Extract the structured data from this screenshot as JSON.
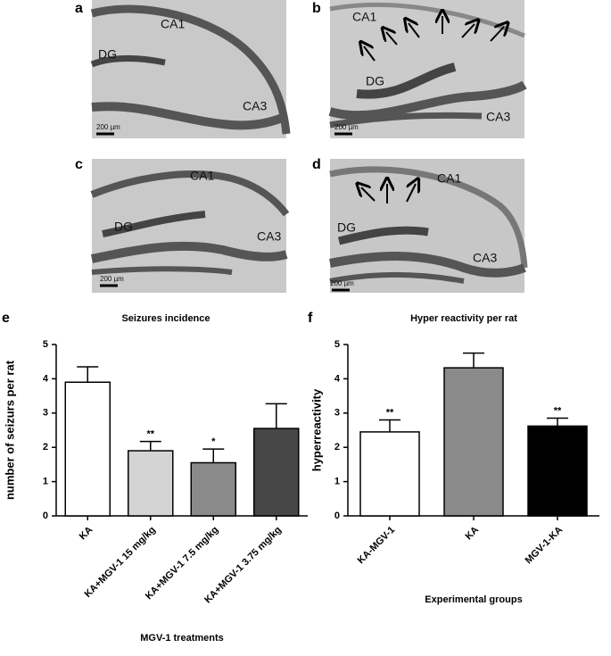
{
  "image_panels": [
    {
      "panel": "a",
      "labels": [
        "CA1",
        "DG",
        "CA3"
      ],
      "scale": "200 µm"
    },
    {
      "panel": "b",
      "labels": [
        "CA1",
        "DG",
        "CA3"
      ],
      "scale": "200 µm"
    },
    {
      "panel": "c",
      "labels": [
        "CA1",
        "DG",
        "CA3"
      ],
      "scale": "200 µm"
    },
    {
      "panel": "d",
      "labels": [
        "CA1",
        "DG",
        "CA3"
      ],
      "scale": "200 µm"
    }
  ],
  "chart_data": [
    {
      "type": "bar",
      "panel": "e",
      "title": "Seizures incidence",
      "y_label": "number of seizurs per rat",
      "x_label": "MGV-1 treatments",
      "categories": [
        "KA",
        "KA+MGV-1 15 mg/kg",
        "KA+MGV-1 7.5 mg/kg",
        "KA+MGV-1 3.75 mg/kg"
      ],
      "values": [
        3.9,
        1.9,
        1.55,
        2.55
      ],
      "errors": [
        0.45,
        0.27,
        0.4,
        0.72
      ],
      "significance": [
        null,
        "**",
        "*",
        null
      ],
      "colors": [
        "#ffffff",
        "#d4d4d4",
        "#8a8a8a",
        "#474747"
      ],
      "ylim": [
        0,
        5
      ],
      "yticks": [
        0,
        1,
        2,
        3,
        4,
        5
      ]
    },
    {
      "type": "bar",
      "panel": "f",
      "title": "Hyper reactivity per rat",
      "y_label": "hyperreactivity",
      "x_label": "Experimental groups",
      "categories": [
        "KA-MGV-1",
        "KA",
        "MGV-1-KA"
      ],
      "values": [
        2.45,
        4.32,
        2.62
      ],
      "errors": [
        0.35,
        0.43,
        0.23
      ],
      "significance": [
        "**",
        null,
        "**"
      ],
      "colors": [
        "#ffffff",
        "#8a8a8a",
        "#000000"
      ],
      "ylim": [
        0,
        5
      ],
      "yticks": [
        0,
        1,
        2,
        3,
        4,
        5
      ]
    }
  ]
}
